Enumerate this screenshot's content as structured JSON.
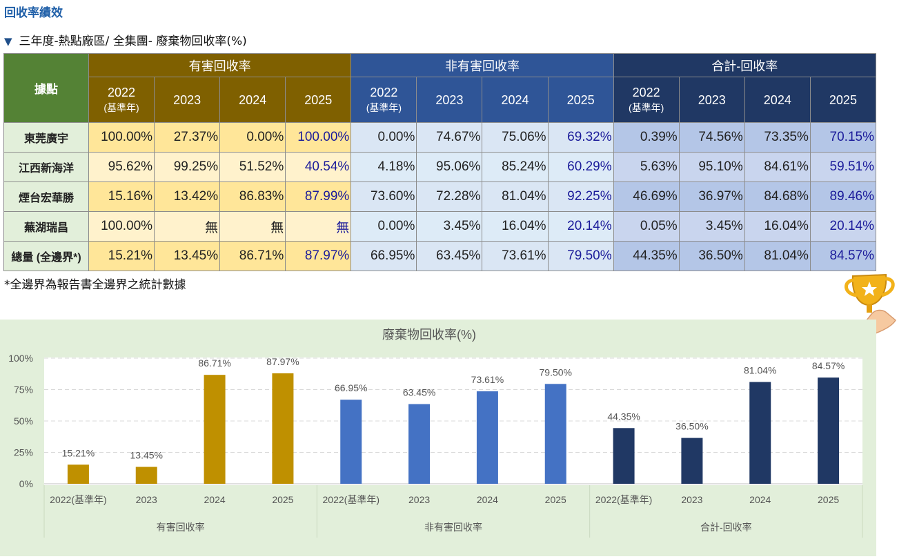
{
  "page": {
    "title": "回收率績效",
    "subtitle": "三年度-熱點廠區/ 全集團- 廢棄物回收率(%)",
    "note": "*全邊界為報告書全邊界之統計數據"
  },
  "table": {
    "site_header": "據點",
    "groups": [
      "有害回收率",
      "非有害回收率",
      "合計-回收率"
    ],
    "years": [
      {
        "year": "2022",
        "note": "(基準年)"
      },
      {
        "year": "2023",
        "note": ""
      },
      {
        "year": "2024",
        "note": ""
      },
      {
        "year": "2025",
        "note": ""
      }
    ],
    "rows": [
      {
        "site": "東莞廣宇",
        "hazardous": [
          "100.00%",
          "27.37%",
          "0.00%",
          "100.00%"
        ],
        "non_hazardous": [
          "0.00%",
          "74.67%",
          "75.06%",
          "69.32%"
        ],
        "total": [
          "0.39%",
          "74.56%",
          "73.35%",
          "70.15%"
        ]
      },
      {
        "site": "江西新海洋",
        "hazardous": [
          "95.62%",
          "99.25%",
          "51.52%",
          "40.54%"
        ],
        "non_hazardous": [
          "4.18%",
          "95.06%",
          "85.24%",
          "60.29%"
        ],
        "total": [
          "5.63%",
          "95.10%",
          "84.61%",
          "59.51%"
        ]
      },
      {
        "site": "煙台宏華勝",
        "hazardous": [
          "15.16%",
          "13.42%",
          "86.83%",
          "87.99%"
        ],
        "non_hazardous": [
          "73.60%",
          "72.28%",
          "81.04%",
          "92.25%"
        ],
        "total": [
          "46.69%",
          "36.97%",
          "84.68%",
          "89.46%"
        ]
      },
      {
        "site": "蕪湖瑞昌",
        "hazardous": [
          "100.00%",
          "無",
          "無",
          "無"
        ],
        "non_hazardous": [
          "0.00%",
          "3.45%",
          "16.04%",
          "20.14%"
        ],
        "total": [
          "0.05%",
          "3.45%",
          "16.04%",
          "20.14%"
        ]
      },
      {
        "site": "總量 (全邊界*)",
        "hazardous": [
          "15.21%",
          "13.45%",
          "86.71%",
          "87.97%"
        ],
        "non_hazardous": [
          "66.95%",
          "63.45%",
          "73.61%",
          "79.50%"
        ],
        "total": [
          "44.35%",
          "36.50%",
          "81.04%",
          "84.57%"
        ]
      }
    ]
  },
  "colors": {
    "hazardous": "#bf9000",
    "non_hazardous": "#4472c4",
    "total": "#203864",
    "chart_panel": "#e2efda"
  },
  "icons": {
    "trophy": "trophy-icon"
  },
  "chart_data": {
    "type": "bar",
    "title": "廢棄物回收率(%)",
    "xlabel": "",
    "ylabel": "",
    "ylim": [
      0,
      100
    ],
    "yticks": [
      "0%",
      "25%",
      "50%",
      "75%",
      "100%"
    ],
    "grid": true,
    "groups": [
      {
        "name": "有害回收率",
        "categories": [
          "2022(基準年)",
          "2023",
          "2024",
          "2025"
        ],
        "values": [
          15.21,
          13.45,
          86.71,
          87.97
        ],
        "labels": [
          "15.21%",
          "13.45%",
          "86.71%",
          "87.97%"
        ]
      },
      {
        "name": "非有害回收率",
        "categories": [
          "2022(基準年)",
          "2023",
          "2024",
          "2025"
        ],
        "values": [
          66.95,
          63.45,
          73.61,
          79.5
        ],
        "labels": [
          "66.95%",
          "63.45%",
          "73.61%",
          "79.50%"
        ]
      },
      {
        "name": "合計-回收率",
        "categories": [
          "2022(基準年)",
          "2023",
          "2024",
          "2025"
        ],
        "values": [
          44.35,
          36.5,
          81.04,
          84.57
        ],
        "labels": [
          "44.35%",
          "36.50%",
          "81.04%",
          "84.57%"
        ]
      }
    ]
  }
}
